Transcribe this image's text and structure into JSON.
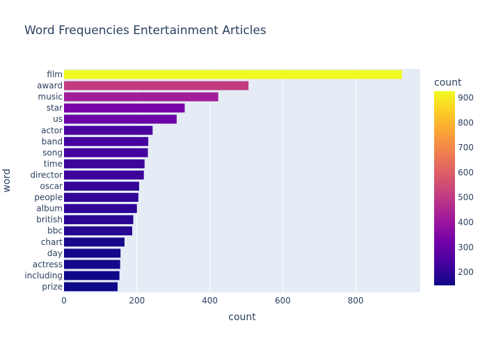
{
  "chart_data": {
    "type": "bar",
    "orientation": "horizontal",
    "title": "Word Frequencies Entertainment Articles",
    "xlabel": "count",
    "ylabel": "word",
    "categories": [
      "film",
      "award",
      "music",
      "star",
      "us",
      "actor",
      "band",
      "song",
      "time",
      "director",
      "oscar",
      "people",
      "album",
      "british",
      "bbc",
      "chart",
      "day",
      "actress",
      "including",
      "prize"
    ],
    "values": [
      927,
      506,
      423,
      331,
      309,
      243,
      231,
      230,
      221,
      219,
      206,
      204,
      200,
      190,
      187,
      166,
      155,
      154,
      152,
      147
    ],
    "xlim": [
      0,
      977
    ],
    "xticks": [
      0,
      200,
      400,
      600,
      800
    ],
    "xtick_labels": [
      "0",
      "200",
      "400",
      "600",
      "800"
    ],
    "grid": true,
    "colorbar": {
      "title": "count",
      "range": [
        147,
        927
      ],
      "ticks": [
        200,
        300,
        400,
        500,
        600,
        700,
        800,
        900
      ],
      "tick_labels": [
        "200",
        "300",
        "400",
        "500",
        "600",
        "700",
        "800",
        "900"
      ],
      "colorscale": [
        "#0d0887",
        "#46039f",
        "#7201a8",
        "#9c179e",
        "#bd3786",
        "#d8576b",
        "#ed7953",
        "#fb9f3a",
        "#fdca26",
        "#f0f921"
      ]
    },
    "plot_bg": "#e5ecf6"
  }
}
